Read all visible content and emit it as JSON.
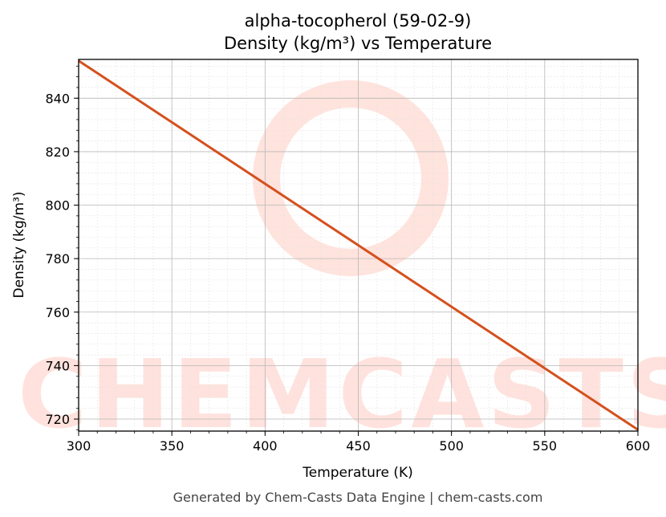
{
  "chart_data": {
    "type": "line",
    "title": "alpha-tocopherol (59-02-9)",
    "subtitle": "Density (kg/m³) vs Temperature",
    "xlabel": "Temperature (K)",
    "ylabel": "Density (kg/m³)",
    "xlim": [
      300,
      600
    ],
    "ylim": [
      715.5,
      854.5
    ],
    "xticks": [
      300,
      350,
      400,
      450,
      500,
      550,
      600
    ],
    "yticks": [
      720,
      740,
      760,
      780,
      800,
      820,
      840
    ],
    "grid": true,
    "series": [
      {
        "color": "#d4511e",
        "x": [
          300,
          600
        ],
        "y": [
          854,
          716
        ]
      }
    ]
  },
  "watermark": {
    "text": "CHEMCASTS",
    "color": "#ffd9d2"
  },
  "footer": "Generated by Chem-Casts Data Engine | chem-casts.com"
}
